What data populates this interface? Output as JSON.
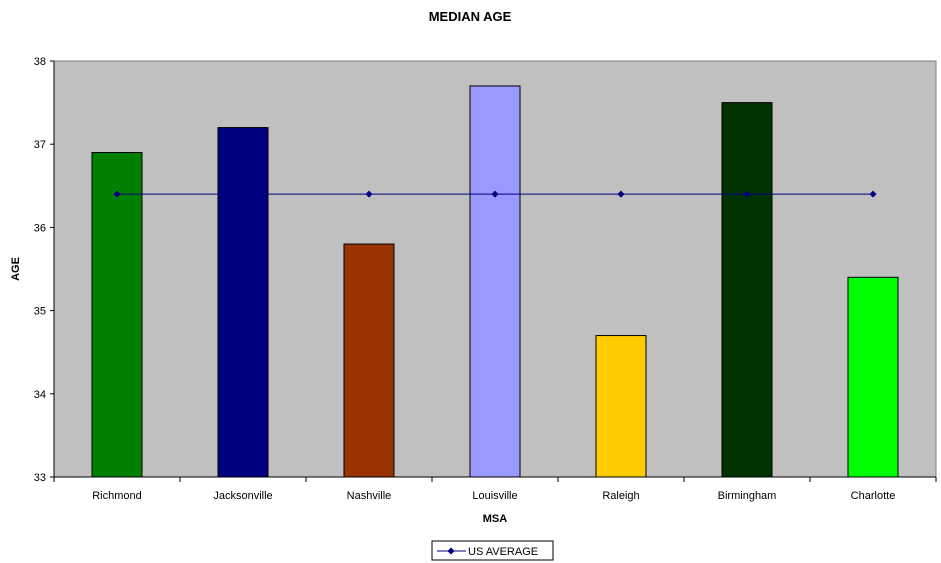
{
  "chart_data": {
    "type": "bar",
    "title": "MEDIAN AGE",
    "xlabel": "MSA",
    "ylabel": "AGE",
    "categories": [
      "Richmond",
      "Jacksonville",
      "Nashville",
      "Louisville",
      "Raleigh",
      "Birmingham",
      "Charlotte"
    ],
    "values": [
      36.9,
      37.2,
      35.8,
      37.7,
      34.7,
      37.5,
      35.4
    ],
    "bar_colors": [
      "#008000",
      "#000080",
      "#993300",
      "#9999FF",
      "#FFCC00",
      "#003300",
      "#00FF00"
    ],
    "line_series": {
      "name": "US AVERAGE",
      "values": [
        36.4,
        36.4,
        36.4,
        36.4,
        36.4,
        36.4,
        36.4
      ],
      "color": "#000080"
    },
    "ylim": [
      33,
      38
    ],
    "yticks": [
      "33",
      "34",
      "35",
      "36",
      "37",
      "38"
    ],
    "plot_background": "#C0C0C0",
    "grid": false,
    "legend_position": "bottom"
  }
}
